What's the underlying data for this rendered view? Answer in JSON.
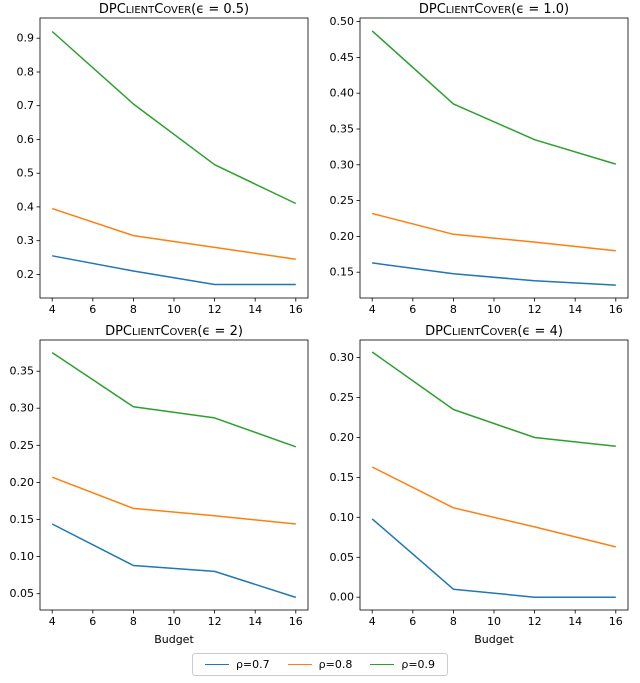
{
  "figure": {
    "background": "#ffffff"
  },
  "legend": {
    "entries": [
      {
        "label": "ρ=0.7",
        "color": "#1f77b4"
      },
      {
        "label": "ρ=0.8",
        "color": "#ff7f0e"
      },
      {
        "label": "ρ=0.9",
        "color": "#2ca02c"
      }
    ]
  },
  "chart_data": [
    {
      "type": "line",
      "title": "DPClientCover(ϵ = 0.5)",
      "xlabel": "",
      "x": [
        4,
        8,
        12,
        16
      ],
      "xlim": [
        3.4,
        16.6
      ],
      "xticks": [
        4,
        6,
        8,
        10,
        12,
        14,
        16
      ],
      "ylim": [
        0.13,
        0.96
      ],
      "yticks": [
        0.2,
        0.3,
        0.4,
        0.5,
        0.6,
        0.7,
        0.8,
        0.9
      ],
      "ytick_labels": [
        "0.2",
        "0.3",
        "0.4",
        "0.5",
        "0.6",
        "0.7",
        "0.8",
        "0.9"
      ],
      "series": [
        {
          "name": "ρ=0.7",
          "color": "#1f77b4",
          "values": [
            0.255,
            0.21,
            0.17,
            0.17
          ]
        },
        {
          "name": "ρ=0.8",
          "color": "#ff7f0e",
          "values": [
            0.395,
            0.315,
            0.28,
            0.245
          ]
        },
        {
          "name": "ρ=0.9",
          "color": "#2ca02c",
          "values": [
            0.92,
            0.705,
            0.525,
            0.41
          ]
        }
      ]
    },
    {
      "type": "line",
      "title": "DPClientCover(ϵ = 1.0)",
      "xlabel": "",
      "x": [
        4,
        8,
        12,
        16
      ],
      "xlim": [
        3.4,
        16.6
      ],
      "xticks": [
        4,
        6,
        8,
        10,
        12,
        14,
        16
      ],
      "ylim": [
        0.114,
        0.505
      ],
      "yticks": [
        0.15,
        0.2,
        0.25,
        0.3,
        0.35,
        0.4,
        0.45,
        0.5
      ],
      "ytick_labels": [
        "0.15",
        "0.20",
        "0.25",
        "0.30",
        "0.35",
        "0.40",
        "0.45",
        "0.50"
      ],
      "series": [
        {
          "name": "ρ=0.7",
          "color": "#1f77b4",
          "values": [
            0.163,
            0.148,
            0.138,
            0.132
          ]
        },
        {
          "name": "ρ=0.8",
          "color": "#ff7f0e",
          "values": [
            0.232,
            0.203,
            0.192,
            0.18
          ]
        },
        {
          "name": "ρ=0.9",
          "color": "#2ca02c",
          "values": [
            0.487,
            0.385,
            0.335,
            0.301
          ]
        }
      ]
    },
    {
      "type": "line",
      "title": "DPClientCover(ϵ = 2)",
      "xlabel": "Budget",
      "x": [
        4,
        8,
        12,
        16
      ],
      "xlim": [
        3.4,
        16.6
      ],
      "xticks": [
        4,
        6,
        8,
        10,
        12,
        14,
        16
      ],
      "ylim": [
        0.028,
        0.392
      ],
      "yticks": [
        0.05,
        0.1,
        0.15,
        0.2,
        0.25,
        0.3,
        0.35
      ],
      "ytick_labels": [
        "0.05",
        "0.10",
        "0.15",
        "0.20",
        "0.25",
        "0.30",
        "0.35"
      ],
      "series": [
        {
          "name": "ρ=0.7",
          "color": "#1f77b4",
          "values": [
            0.144,
            0.088,
            0.08,
            0.045
          ]
        },
        {
          "name": "ρ=0.8",
          "color": "#ff7f0e",
          "values": [
            0.207,
            0.165,
            0.155,
            0.144
          ]
        },
        {
          "name": "ρ=0.9",
          "color": "#2ca02c",
          "values": [
            0.375,
            0.302,
            0.287,
            0.248
          ]
        }
      ]
    },
    {
      "type": "line",
      "title": "DPClientCover(ϵ = 4)",
      "xlabel": "Budget",
      "x": [
        4,
        8,
        12,
        16
      ],
      "xlim": [
        3.4,
        16.6
      ],
      "xticks": [
        4,
        6,
        8,
        10,
        12,
        14,
        16
      ],
      "ylim": [
        -0.016,
        0.322
      ],
      "yticks": [
        0.0,
        0.05,
        0.1,
        0.15,
        0.2,
        0.25,
        0.3
      ],
      "ytick_labels": [
        "0.00",
        "0.05",
        "0.10",
        "0.15",
        "0.20",
        "0.25",
        "0.30"
      ],
      "series": [
        {
          "name": "ρ=0.7",
          "color": "#1f77b4",
          "values": [
            0.098,
            0.01,
            0.0,
            0.0
          ]
        },
        {
          "name": "ρ=0.8",
          "color": "#ff7f0e",
          "values": [
            0.163,
            0.112,
            0.088,
            0.063
          ]
        },
        {
          "name": "ρ=0.9",
          "color": "#2ca02c",
          "values": [
            0.307,
            0.235,
            0.2,
            0.189
          ]
        }
      ]
    }
  ]
}
